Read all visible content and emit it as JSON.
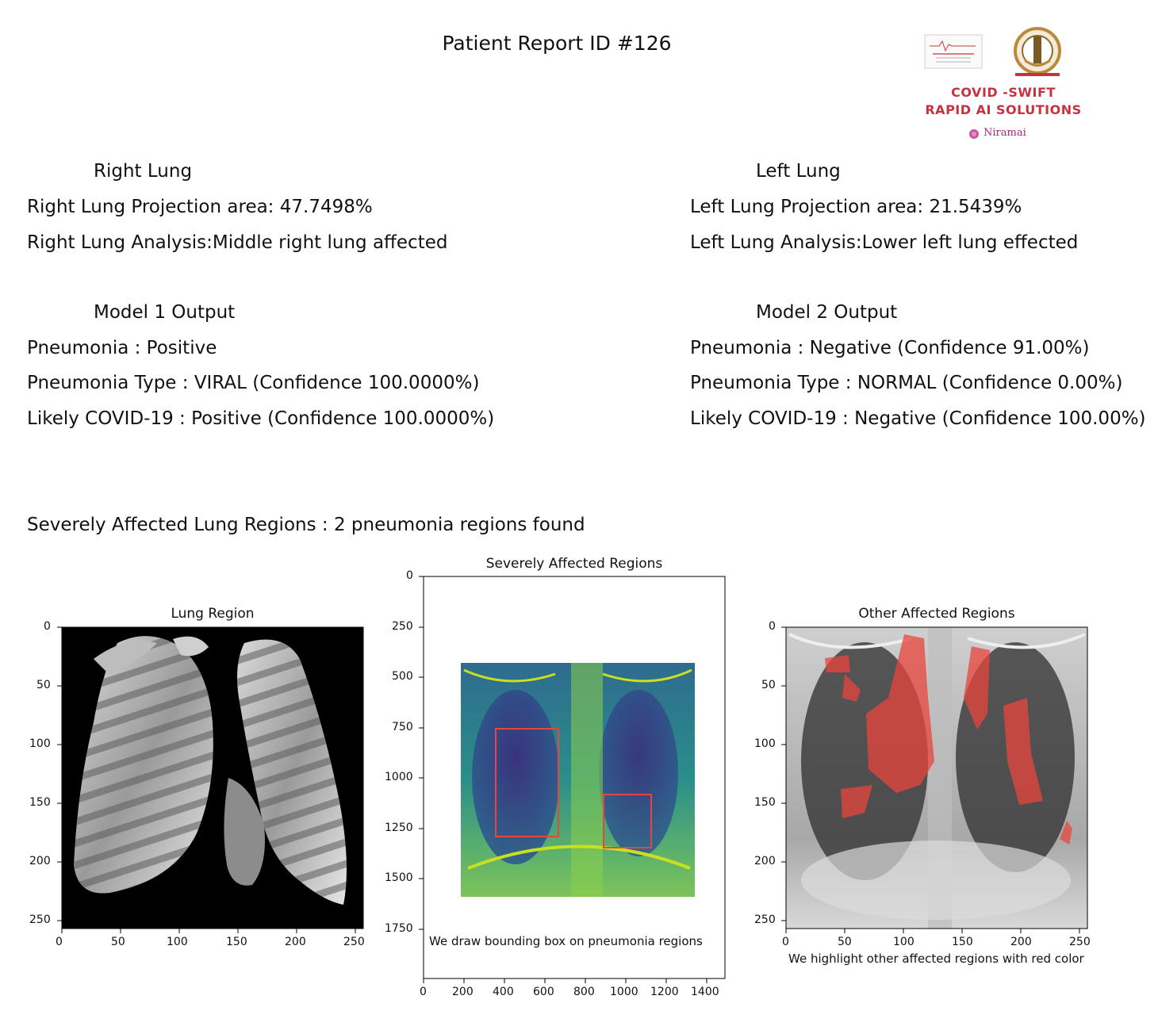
{
  "report": {
    "title": "Patient Report ID #126"
  },
  "logo": {
    "line1": "COVID -SWIFT",
    "line2": "RAPID AI SOLUTIONS",
    "partner": "Niramai"
  },
  "right_lung": {
    "heading": "Right Lung",
    "projection": "Right Lung Projection area: 47.7498%",
    "analysis": "Right Lung Analysis:Middle right lung affected"
  },
  "left_lung": {
    "heading": "Left Lung",
    "projection": "Left Lung Projection area: 21.5439%",
    "analysis": "Left Lung Analysis:Lower left lung effected"
  },
  "model1": {
    "heading": "Model 1 Output",
    "pneumonia": "Pneumonia : Positive",
    "type": "Pneumonia Type : VIRAL (Confidence 100.0000%)",
    "covid": "Likely COVID-19 : Positive  (Confidence 100.0000%)"
  },
  "model2": {
    "heading": "Model 2 Output",
    "pneumonia": "Pneumonia : Negative (Confidence 91.00%)",
    "type": "Pneumonia Type : NORMAL (Confidence 0.00%)",
    "covid": "Likely COVID-19 : Negative (Confidence 100.00%)"
  },
  "severity": {
    "summary": "Severely Affected Lung Regions : 2 pneumonia regions found"
  },
  "panels": {
    "lung_region": {
      "title": "Lung Region",
      "x_ticks": [
        "0",
        "50",
        "100",
        "150",
        "200",
        "250"
      ],
      "y_ticks": [
        "0",
        "50",
        "100",
        "150",
        "200",
        "250"
      ]
    },
    "severe": {
      "title": "Severely Affected Regions",
      "caption": "We draw bounding box on pneumonia regions",
      "x_ticks": [
        "0",
        "200",
        "400",
        "600",
        "800",
        "1000",
        "1200",
        "1400"
      ],
      "y_ticks": [
        "0",
        "250",
        "500",
        "750",
        "1000",
        "1250",
        "1500",
        "1750"
      ]
    },
    "other": {
      "title": "Other Affected Regions",
      "caption": "We highlight other affected regions with red color",
      "x_ticks": [
        "0",
        "50",
        "100",
        "150",
        "200",
        "250"
      ],
      "y_ticks": [
        "0",
        "50",
        "100",
        "150",
        "200",
        "250"
      ]
    }
  },
  "colors": {
    "brand_red": "#c8323f",
    "highlight_red": "#e8453c",
    "viridis_low": "#3b1f6b",
    "viridis_high": "#c8e020"
  }
}
